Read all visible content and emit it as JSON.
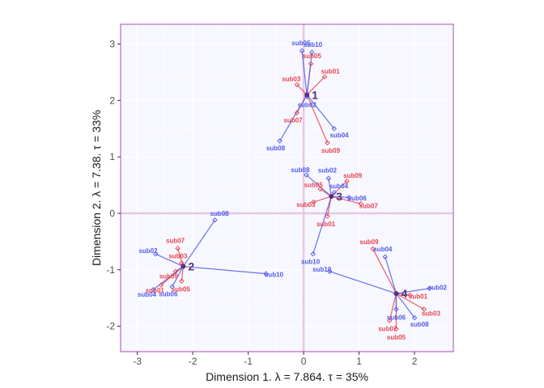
{
  "chart_data": {
    "type": "scatter",
    "xlabel": "Dimension 1.   λ = 7.864.   τ = 35%",
    "ylabel": "Dimension 2.   λ = 7.38.   τ = 33%",
    "xlim": [
      -3.3,
      2.7
    ],
    "ylim": [
      -2.45,
      3.35
    ],
    "x_ticks": [
      -3,
      -2,
      -1,
      0,
      1,
      2
    ],
    "y_ticks": [
      -2,
      -1,
      0,
      1,
      2,
      3
    ],
    "grid": true,
    "reference_lines": {
      "x": 0,
      "y": 0
    },
    "colors": {
      "panel_bg": "#f7f7ff",
      "panel_border": "#a64db3",
      "grid": "#ffffff",
      "refline": "#e6c7e6",
      "series_a": "#e8434f",
      "series_b": "#4f5ae8",
      "centroid_label": "#5a2f7a"
    },
    "series": [
      {
        "id": "a",
        "points": [
          {
            "cluster": 1,
            "label": "sub01",
            "x": 0.38,
            "y": 2.42
          },
          {
            "cluster": 1,
            "label": "sub03",
            "x": -0.12,
            "y": 2.28
          },
          {
            "cluster": 1,
            "label": "sub05",
            "x": 0.13,
            "y": 2.65
          },
          {
            "cluster": 1,
            "label": "sub07",
            "x": -0.12,
            "y": 1.78
          },
          {
            "cluster": 1,
            "label": "sub09",
            "x": 0.43,
            "y": 1.25
          },
          {
            "cluster": 2,
            "label": "sub01",
            "x": -2.57,
            "y": -1.27
          },
          {
            "cluster": 2,
            "label": "sub03",
            "x": -2.2,
            "y": -0.88
          },
          {
            "cluster": 2,
            "label": "sub05",
            "x": -2.2,
            "y": -1.2
          },
          {
            "cluster": 2,
            "label": "sub07",
            "x": -2.27,
            "y": -0.62
          },
          {
            "cluster": 2,
            "label": "sub09",
            "x": -2.31,
            "y": -1.03
          },
          {
            "cluster": 3,
            "label": "sub01",
            "x": 0.43,
            "y": -0.05
          },
          {
            "cluster": 3,
            "label": "sub03",
            "x": 0.18,
            "y": 0.2
          },
          {
            "cluster": 3,
            "label": "sub05",
            "x": 0.3,
            "y": 0.43
          },
          {
            "cluster": 3,
            "label": "sub07",
            "x": 1.03,
            "y": 0.17
          },
          {
            "cluster": 3,
            "label": "sub09",
            "x": 0.78,
            "y": 0.57
          },
          {
            "cluster": 4,
            "label": "sub01",
            "x": 1.92,
            "y": -1.45
          },
          {
            "cluster": 4,
            "label": "sub03",
            "x": 2.17,
            "y": -1.7
          },
          {
            "cluster": 4,
            "label": "sub05",
            "x": 1.67,
            "y": -2.05
          },
          {
            "cluster": 4,
            "label": "sub07",
            "x": 1.55,
            "y": -1.9
          },
          {
            "cluster": 4,
            "label": "sub09",
            "x": 1.25,
            "y": -0.63
          }
        ]
      },
      {
        "id": "b",
        "points": [
          {
            "cluster": 1,
            "label": "sub02",
            "x": 0.06,
            "y": 2.07
          },
          {
            "cluster": 1,
            "label": "sub04",
            "x": 0.55,
            "y": 1.5
          },
          {
            "cluster": 1,
            "label": "sub06",
            "x": -0.03,
            "y": 2.88
          },
          {
            "cluster": 1,
            "label": "sub08",
            "x": -0.43,
            "y": 1.28
          },
          {
            "cluster": 1,
            "label": "sub10",
            "x": 0.15,
            "y": 2.85
          },
          {
            "cluster": 2,
            "label": "sub02",
            "x": -2.67,
            "y": -0.72
          },
          {
            "cluster": 2,
            "label": "sub04",
            "x": -2.71,
            "y": -1.35
          },
          {
            "cluster": 2,
            "label": "sub06",
            "x": -2.37,
            "y": -1.3
          },
          {
            "cluster": 2,
            "label": "sub08",
            "x": -1.6,
            "y": -0.12
          },
          {
            "cluster": 2,
            "label": "sub10",
            "x": -0.68,
            "y": -1.07
          },
          {
            "cluster": 3,
            "label": "sub02",
            "x": 0.45,
            "y": 0.62
          },
          {
            "cluster": 3,
            "label": "sub04",
            "x": 0.55,
            "y": 0.37
          },
          {
            "cluster": 3,
            "label": "sub06",
            "x": 0.82,
            "y": 0.28
          },
          {
            "cluster": 3,
            "label": "sub08",
            "x": 0.05,
            "y": 0.68
          },
          {
            "cluster": 3,
            "label": "sub10",
            "x": 0.17,
            "y": -0.72
          },
          {
            "cluster": 4,
            "label": "sub02",
            "x": 2.27,
            "y": -1.33
          },
          {
            "cluster": 4,
            "label": "sub04",
            "x": 1.47,
            "y": -0.77
          },
          {
            "cluster": 4,
            "label": "sub06",
            "x": 1.67,
            "y": -1.7
          },
          {
            "cluster": 4,
            "label": "sub08",
            "x": 2.0,
            "y": -1.85
          },
          {
            "cluster": 4,
            "label": "sub10",
            "x": 0.47,
            "y": -1.03
          }
        ]
      }
    ],
    "centroids": [
      {
        "label": "1",
        "x": 0.06,
        "y": 2.1
      },
      {
        "label": "2",
        "x": -2.17,
        "y": -0.94
      },
      {
        "label": "3",
        "x": 0.5,
        "y": 0.3
      },
      {
        "label": "4",
        "x": 1.67,
        "y": -1.42
      }
    ]
  }
}
